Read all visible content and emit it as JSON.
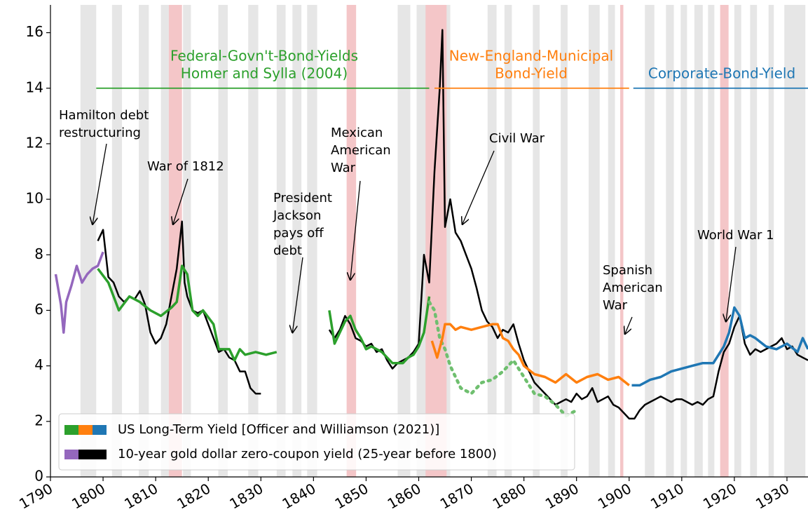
{
  "chart_data": {
    "type": "line",
    "xlim": [
      1790,
      1934
    ],
    "ylim": [
      0,
      17
    ],
    "xticks": [
      1790,
      1800,
      1810,
      1820,
      1830,
      1840,
      1850,
      1860,
      1870,
      1880,
      1890,
      1900,
      1910,
      1920,
      1930
    ],
    "yticks": [
      0,
      2,
      4,
      6,
      8,
      10,
      12,
      14,
      16
    ],
    "recession_bands": [
      [
        1795.7,
        1798.7
      ],
      [
        1801.7,
        1803.6
      ],
      [
        1806.8,
        1808.7
      ],
      [
        1811,
        1812.5
      ],
      [
        1815.2,
        1816.7
      ],
      [
        1821.9,
        1823.7
      ],
      [
        1827.6,
        1829.5
      ],
      [
        1833,
        1834.7
      ],
      [
        1836,
        1837.7
      ],
      [
        1838.8,
        1840.7
      ],
      [
        1856,
        1858.4
      ],
      [
        1859.6,
        1861.5
      ],
      [
        1864.3,
        1866
      ],
      [
        1873.1,
        1874.8
      ],
      [
        1876.3,
        1877.7
      ],
      [
        1881.7,
        1883
      ],
      [
        1887,
        1888.3
      ],
      [
        1892.3,
        1894.4
      ],
      [
        1896,
        1897.3
      ],
      [
        1903,
        1904.8
      ],
      [
        1907,
        1908.5
      ],
      [
        1909.8,
        1911
      ],
      [
        1912.4,
        1914
      ],
      [
        1915,
        1916.2
      ],
      [
        1920,
        1921.3
      ],
      [
        1923,
        1924.3
      ],
      [
        1926.5,
        1927.5
      ],
      [
        1929.5,
        1933.5
      ]
    ],
    "war_bands": [
      [
        1812.5,
        1815
      ],
      [
        1846.3,
        1848.1
      ],
      [
        1861.3,
        1865.3
      ],
      [
        1898.3,
        1898.9
      ],
      [
        1917.3,
        1918.9
      ]
    ],
    "series": [
      {
        "color": "#9467bd",
        "x": [
          1791,
          1792,
          1792.5,
          1793,
          1794,
          1795,
          1796,
          1797,
          1798,
          1799,
          1800
        ],
        "values": [
          7.3,
          6.2,
          5.2,
          6.3,
          6.9,
          7.6,
          7.0,
          7.3,
          7.5,
          7.6,
          8.1
        ]
      },
      {
        "color": "#000000",
        "x": [
          1799,
          1800,
          1801,
          1802,
          1803,
          1804,
          1805,
          1806,
          1807,
          1808,
          1809,
          1810,
          1811,
          1812,
          1813,
          1814,
          1815,
          1815.5,
          1816,
          1817,
          1818,
          1819,
          1820,
          1821,
          1822,
          1823,
          1824,
          1825,
          1826,
          1827,
          1828,
          1829,
          1830
        ],
        "values": [
          8.5,
          8.9,
          7.2,
          7.0,
          6.5,
          6.3,
          6.5,
          6.4,
          6.7,
          6.2,
          5.2,
          4.8,
          5.0,
          5.5,
          6.5,
          7.5,
          9.2,
          7.0,
          6.5,
          6.0,
          5.9,
          6.0,
          5.5,
          5.0,
          4.5,
          4.6,
          4.3,
          4.2,
          3.8,
          3.8,
          3.2,
          3.0,
          3.0
        ]
      },
      {
        "color": "#000000",
        "x": [
          1843,
          1844,
          1845,
          1846,
          1847,
          1848,
          1849,
          1850,
          1851,
          1852,
          1853,
          1854,
          1855,
          1856,
          1857,
          1858,
          1859,
          1860,
          1861,
          1862,
          1863,
          1864,
          1864.5,
          1865,
          1866,
          1867,
          1868,
          1869,
          1870,
          1871,
          1872,
          1873,
          1874,
          1875,
          1876,
          1877,
          1878,
          1879,
          1880,
          1881,
          1882,
          1883,
          1884,
          1885,
          1886,
          1887,
          1888,
          1889,
          1890,
          1891,
          1892,
          1893,
          1894,
          1895,
          1896,
          1897,
          1898,
          1899,
          1900,
          1901,
          1902,
          1903,
          1904,
          1905,
          1906,
          1907,
          1908,
          1909,
          1910,
          1911,
          1912,
          1913,
          1914,
          1915,
          1916,
          1917,
          1918,
          1919,
          1920,
          1921,
          1922,
          1923,
          1924,
          1925,
          1926,
          1927,
          1928,
          1929,
          1930,
          1931,
          1932,
          1933,
          1934
        ],
        "values": [
          5.3,
          5.0,
          5.3,
          5.8,
          5.5,
          5.0,
          4.9,
          4.7,
          4.8,
          4.5,
          4.6,
          4.2,
          3.9,
          4.1,
          4.2,
          4.3,
          4.5,
          4.8,
          8.0,
          7.0,
          11.0,
          14.0,
          16.1,
          9.0,
          10.0,
          8.8,
          8.5,
          8.0,
          7.5,
          6.8,
          6.0,
          5.6,
          5.4,
          5.0,
          5.3,
          5.2,
          5.5,
          4.8,
          4.2,
          3.8,
          3.4,
          3.2,
          3.0,
          2.8,
          2.6,
          2.7,
          2.8,
          2.7,
          3.0,
          2.8,
          2.9,
          3.2,
          2.7,
          2.8,
          2.9,
          2.6,
          2.5,
          2.3,
          2.1,
          2.1,
          2.4,
          2.6,
          2.7,
          2.8,
          2.9,
          2.8,
          2.7,
          2.8,
          2.8,
          2.7,
          2.6,
          2.7,
          2.6,
          2.8,
          2.9,
          3.8,
          4.5,
          4.8,
          5.4,
          5.8,
          4.8,
          4.4,
          4.6,
          4.5,
          4.6,
          4.7,
          4.8,
          5.0,
          4.6,
          4.7,
          4.4,
          4.3,
          4.2
        ]
      },
      {
        "color": "#2ca02c",
        "x": [
          1799,
          1801,
          1803,
          1805,
          1807,
          1809,
          1811,
          1813,
          1814,
          1815,
          1816,
          1817,
          1818,
          1819,
          1821,
          1822,
          1824,
          1825,
          1826,
          1827,
          1829,
          1831,
          1833
        ],
        "values": [
          7.5,
          7.0,
          6.0,
          6.5,
          6.3,
          6.0,
          5.8,
          6.1,
          6.3,
          7.6,
          7.3,
          6.0,
          5.8,
          6.0,
          5.5,
          4.6,
          4.6,
          4.2,
          4.6,
          4.4,
          4.5,
          4.4,
          4.5
        ]
      },
      {
        "color": "#2ca02c",
        "x": [
          1843,
          1844,
          1845,
          1846,
          1847,
          1848,
          1849,
          1850,
          1851,
          1852,
          1853,
          1854,
          1855,
          1856,
          1857,
          1858,
          1859,
          1860,
          1861,
          1862
        ],
        "values": [
          6.0,
          4.8,
          5.2,
          5.6,
          5.8,
          5.3,
          5.0,
          4.6,
          4.7,
          4.6,
          4.5,
          4.3,
          4.1,
          4.1,
          4.1,
          4.3,
          4.4,
          4.7,
          5.2,
          6.5
        ]
      },
      {
        "color": "#6fbf6f",
        "dash": true,
        "x": [
          1862,
          1863,
          1864,
          1865,
          1866,
          1868,
          1870,
          1872,
          1874,
          1876,
          1878,
          1880,
          1882,
          1884,
          1886,
          1888,
          1890
        ],
        "values": [
          6.3,
          6.0,
          5.0,
          4.6,
          4.0,
          3.2,
          3.0,
          3.4,
          3.5,
          3.8,
          4.2,
          3.6,
          3.0,
          2.9,
          2.6,
          2.2,
          2.4
        ]
      },
      {
        "color": "#ff7f0e",
        "x": [
          1862.5,
          1863.5,
          1864.5,
          1865,
          1866,
          1867,
          1868,
          1870,
          1872,
          1874,
          1875,
          1876,
          1877,
          1878,
          1879,
          1880,
          1882,
          1884,
          1886,
          1888,
          1890,
          1892,
          1894,
          1896,
          1898,
          1900
        ],
        "values": [
          4.9,
          4.3,
          5.0,
          5.5,
          5.5,
          5.3,
          5.4,
          5.3,
          5.4,
          5.5,
          5.5,
          5.0,
          4.9,
          4.6,
          4.4,
          4.0,
          3.7,
          3.6,
          3.4,
          3.7,
          3.4,
          3.6,
          3.7,
          3.5,
          3.6,
          3.3
        ]
      },
      {
        "color": "#1f77b4",
        "x": [
          1900.5,
          1902,
          1904,
          1906,
          1908,
          1910,
          1912,
          1914,
          1916,
          1917,
          1918,
          1919,
          1920,
          1921,
          1922,
          1923,
          1924,
          1926,
          1928,
          1930,
          1932,
          1933,
          1934
        ],
        "values": [
          3.3,
          3.3,
          3.5,
          3.6,
          3.8,
          3.9,
          4.0,
          4.1,
          4.1,
          4.4,
          4.7,
          5.2,
          6.1,
          5.8,
          5.0,
          5.1,
          5.0,
          4.7,
          4.6,
          4.8,
          4.5,
          5.0,
          4.6
        ]
      }
    ],
    "group_labels": [
      {
        "lines": [
          "Federal-Govn't-Bond-Yields",
          "Homer and Sylla (2004)"
        ],
        "color": "#2ca02c",
        "y": 14,
        "span": [
          1798.7,
          1862
        ]
      },
      {
        "lines": [
          "New-England-Municipal",
          "Bond-Yield"
        ],
        "color": "#ff7f0e",
        "y": 14,
        "span": [
          1863,
          1900
        ]
      },
      {
        "lines": [
          "Corporate-Bond-Yield"
        ],
        "color": "#1f77b4",
        "y": 14,
        "span": [
          1900.8,
          1934
        ]
      }
    ],
    "annotations": [
      {
        "lines": [
          "Hamilton debt",
          "restructuring"
        ],
        "x": 1798,
        "y": 9.1
      },
      {
        "lines": [
          "War of 1812"
        ],
        "x": 1813.3,
        "y": 9.1
      },
      {
        "lines": [
          "President",
          "Jackson",
          "pays off",
          "debt"
        ],
        "x": 1836,
        "y": 5.2
      },
      {
        "lines": [
          "Mexican",
          "American",
          "War"
        ],
        "x": 1847,
        "y": 7.1
      },
      {
        "lines": [
          "Civil War"
        ],
        "x": 1868.3,
        "y": 9.1
      },
      {
        "lines": [
          "Spanish",
          "American",
          "War"
        ],
        "x": 1899.2,
        "y": 5.15
      },
      {
        "lines": [
          "World War 1"
        ],
        "x": 1918.4,
        "y": 5.6
      }
    ],
    "legend": [
      {
        "label": "US Long-Term Yield [Officer and Williamson (2021)]",
        "colors": [
          "#2ca02c",
          "#ff7f0e",
          "#1f77b4"
        ]
      },
      {
        "label": "10-year gold dollar zero-coupon yield (25-year before 1800)",
        "colors": [
          "#9467bd",
          "#000000",
          "#000000"
        ]
      }
    ]
  }
}
